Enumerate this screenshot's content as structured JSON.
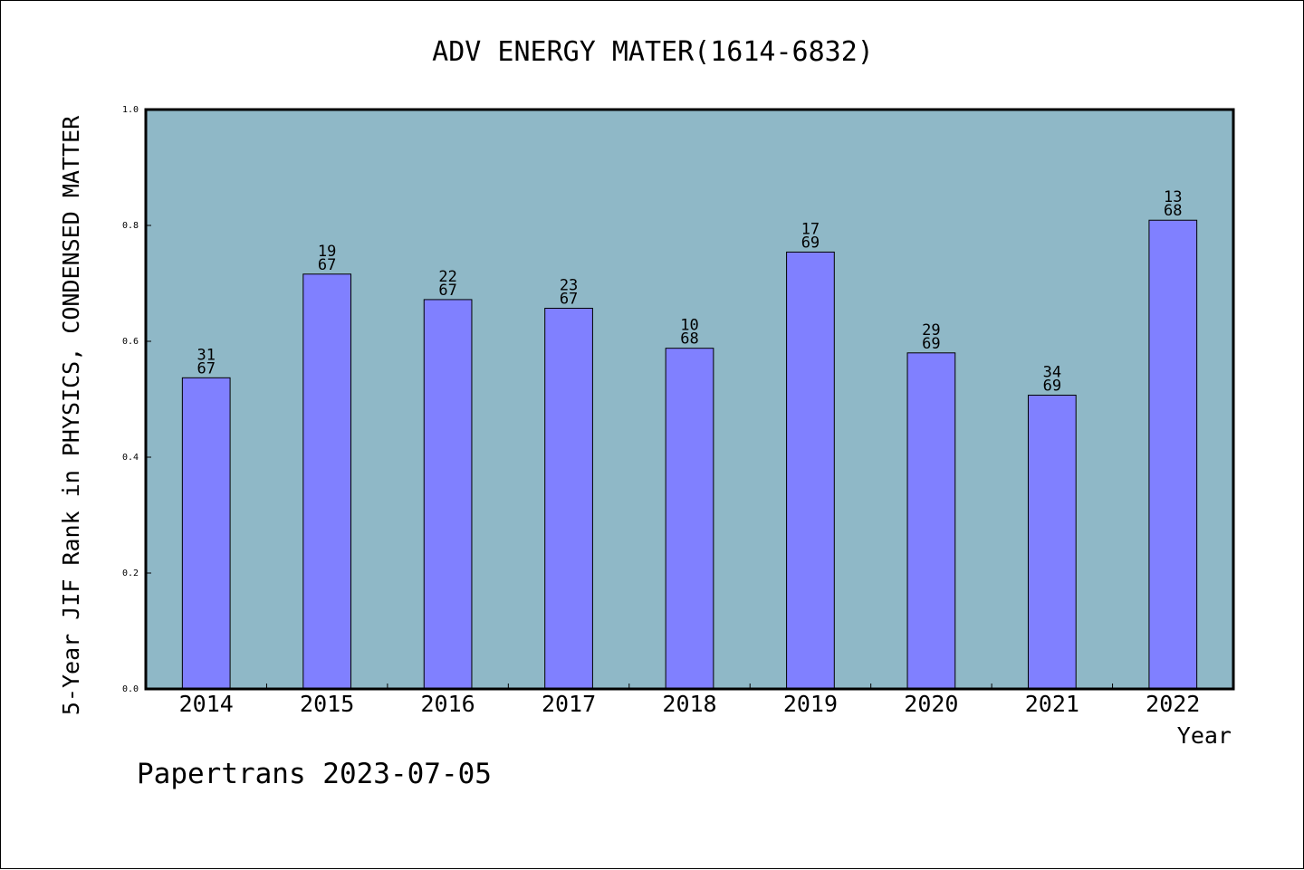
{
  "chart_data": {
    "type": "bar",
    "title": "ADV ENERGY MATER(1614-6832)",
    "xlabel": "Year",
    "ylabel": "5-Year JIF Rank in PHYSICS, CONDENSED MATTER",
    "categories": [
      "2014",
      "2015",
      "2016",
      "2017",
      "2018",
      "2019",
      "2020",
      "2021",
      "2022"
    ],
    "values": [
      0.537,
      0.716,
      0.672,
      0.657,
      0.588,
      0.754,
      0.58,
      0.507,
      0.809
    ],
    "bar_labels": [
      [
        "31",
        "67"
      ],
      [
        "19",
        "67"
      ],
      [
        "22",
        "67"
      ],
      [
        "23",
        "67"
      ],
      [
        "10",
        "68"
      ],
      [
        "17",
        "69"
      ],
      [
        "29",
        "69"
      ],
      [
        "34",
        "69"
      ],
      [
        "13",
        "68"
      ]
    ],
    "ylim": [
      0,
      1.0
    ],
    "yticks": [
      "0.0",
      "0.2",
      "0.4",
      "0.6",
      "0.8",
      "1.0"
    ],
    "grid": false,
    "colors": {
      "plot_background": "#8fb8c7",
      "bar_fill": "#8080ff",
      "bar_stroke": "#000000"
    }
  },
  "footer": "Papertrans 2023-07-05"
}
